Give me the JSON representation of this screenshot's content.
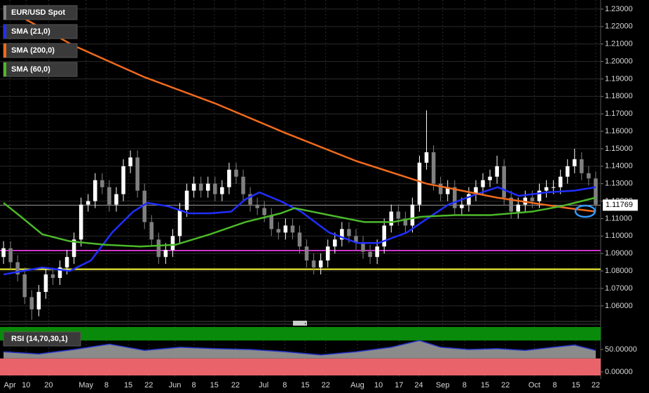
{
  "chart_data": [
    {
      "type": "candlestick",
      "xlim": [
        -0.5,
        84.7
      ],
      "ylim": [
        1.0523,
        1.2352
      ],
      "grid": true,
      "yticks": [
        {
          "value": 1.06,
          "label": "1.06000"
        },
        {
          "value": 1.07,
          "label": "1.07000"
        },
        {
          "value": 1.08,
          "label": "1.08000"
        },
        {
          "value": 1.09,
          "label": "1.09000"
        },
        {
          "value": 1.1,
          "label": "1.10000"
        },
        {
          "value": 1.11,
          "label": "1.11000"
        },
        {
          "value": 1.12,
          "label": "1.12000"
        },
        {
          "value": 1.13,
          "label": "1.13000"
        },
        {
          "value": 1.14,
          "label": "1.14000"
        },
        {
          "value": 1.15,
          "label": "1.15000"
        },
        {
          "value": 1.16,
          "label": "1.16000"
        },
        {
          "value": 1.17,
          "label": "1.17000"
        },
        {
          "value": 1.18,
          "label": "1.18000"
        },
        {
          "value": 1.19,
          "label": "1.19000"
        },
        {
          "value": 1.2,
          "label": "1.20000"
        },
        {
          "value": 1.21,
          "label": "1.21000"
        },
        {
          "value": 1.22,
          "label": "1.22000"
        },
        {
          "value": 1.23,
          "label": "1.23000"
        }
      ],
      "xticks": [
        {
          "value": 0.9,
          "label": "Apr"
        },
        {
          "value": 3.2,
          "label": "10"
        },
        {
          "value": 6.4,
          "label": "20"
        },
        {
          "value": 11.7,
          "label": "May"
        },
        {
          "value": 14.6,
          "label": "8"
        },
        {
          "value": 17.7,
          "label": "15"
        },
        {
          "value": 20.6,
          "label": "22"
        },
        {
          "value": 24.3,
          "label": "Jun"
        },
        {
          "value": 27.0,
          "label": "8"
        },
        {
          "value": 29.9,
          "label": "15"
        },
        {
          "value": 32.9,
          "label": "22"
        },
        {
          "value": 36.9,
          "label": "Jul"
        },
        {
          "value": 39.9,
          "label": "8"
        },
        {
          "value": 42.8,
          "label": "15"
        },
        {
          "value": 45.7,
          "label": "22"
        },
        {
          "value": 50.2,
          "label": "Aug"
        },
        {
          "value": 53.2,
          "label": "10"
        },
        {
          "value": 56.1,
          "label": "17"
        },
        {
          "value": 58.9,
          "label": "24"
        },
        {
          "value": 62.3,
          "label": "Sep"
        },
        {
          "value": 65.4,
          "label": "8"
        },
        {
          "value": 68.3,
          "label": "15"
        },
        {
          "value": 71.2,
          "label": "22"
        },
        {
          "value": 75.3,
          "label": "Oct"
        },
        {
          "value": 78.2,
          "label": "8"
        },
        {
          "value": 81.2,
          "label": "15"
        },
        {
          "value": 84.0,
          "label": "22"
        }
      ],
      "last_price": 1.11769,
      "hlines": [
        {
          "value": 1.0917,
          "color": "#cc33cc"
        },
        {
          "value": 1.081,
          "color": "#ffff33"
        }
      ],
      "series": [
        {
          "name": "EUR/USD Spot",
          "color": "#ffffff",
          "down_color": "#808080",
          "open": [
            1.088,
            1.093,
            1.085,
            1.078,
            1.065,
            1.058,
            1.068,
            1.078,
            1.076,
            1.082,
            1.088,
            1.098,
            1.118,
            1.12,
            1.132,
            1.128,
            1.118,
            1.124,
            1.14,
            1.145,
            1.126,
            1.108,
            1.098,
            1.088,
            1.092,
            1.1,
            1.115,
            1.126,
            1.13,
            1.126,
            1.13,
            1.124,
            1.128,
            1.138,
            1.134,
            1.124,
            1.118,
            1.116,
            1.112,
            1.104,
            1.102,
            1.106,
            1.102,
            1.094,
            1.086,
            1.082,
            1.086,
            1.094,
            1.098,
            1.104,
            1.1,
            1.096,
            1.091,
            1.088,
            1.094,
            1.106,
            1.114,
            1.11,
            1.106,
            1.118,
            1.142,
            1.148,
            1.13,
            1.124,
            1.128,
            1.116,
            1.118,
            1.124,
            1.128,
            1.132,
            1.134,
            1.14,
            1.122,
            1.114,
            1.118,
            1.122,
            1.12,
            1.126,
            1.128,
            1.128,
            1.134,
            1.14,
            1.144,
            1.136,
            1.133
          ],
          "high": [
            1.097,
            1.097,
            1.089,
            1.082,
            1.069,
            1.072,
            1.082,
            1.082,
            1.086,
            1.092,
            1.102,
            1.122,
            1.124,
            1.136,
            1.136,
            1.132,
            1.128,
            1.144,
            1.149,
            1.149,
            1.13,
            1.112,
            1.102,
            1.096,
            1.104,
            1.119,
            1.13,
            1.134,
            1.134,
            1.134,
            1.134,
            1.132,
            1.142,
            1.142,
            1.138,
            1.128,
            1.122,
            1.12,
            1.116,
            1.108,
            1.11,
            1.11,
            1.106,
            1.098,
            1.09,
            1.09,
            1.098,
            1.102,
            1.108,
            1.108,
            1.104,
            1.1,
            1.095,
            1.098,
            1.11,
            1.118,
            1.118,
            1.114,
            1.122,
            1.146,
            1.172,
            1.152,
            1.134,
            1.132,
            1.132,
            1.122,
            1.128,
            1.132,
            1.136,
            1.138,
            1.146,
            1.144,
            1.126,
            1.122,
            1.126,
            1.126,
            1.13,
            1.132,
            1.132,
            1.138,
            1.144,
            1.15,
            1.148,
            1.14,
            1.137
          ],
          "low": [
            1.084,
            1.081,
            1.074,
            1.061,
            1.052,
            1.054,
            1.064,
            1.072,
            1.072,
            1.078,
            1.084,
            1.094,
            1.114,
            1.116,
            1.124,
            1.114,
            1.114,
            1.12,
            1.136,
            1.122,
            1.104,
            1.094,
            1.084,
            1.084,
            1.088,
            1.096,
            1.111,
            1.122,
            1.122,
            1.122,
            1.12,
            1.12,
            1.124,
            1.13,
            1.12,
            1.114,
            1.112,
            1.108,
            1.1,
            1.098,
            1.098,
            1.098,
            1.09,
            1.082,
            1.078,
            1.078,
            1.082,
            1.09,
            1.094,
            1.096,
            1.092,
            1.087,
            1.084,
            1.084,
            1.09,
            1.102,
            1.106,
            1.102,
            1.102,
            1.114,
            1.138,
            1.126,
            1.12,
            1.12,
            1.112,
            1.112,
            1.114,
            1.12,
            1.124,
            1.128,
            1.13,
            1.118,
            1.11,
            1.11,
            1.114,
            1.116,
            1.116,
            1.122,
            1.124,
            1.124,
            1.13,
            1.136,
            1.132,
            1.129,
            1.114
          ],
          "close": [
            1.093,
            1.085,
            1.078,
            1.065,
            1.058,
            1.068,
            1.078,
            1.076,
            1.082,
            1.088,
            1.098,
            1.118,
            1.12,
            1.132,
            1.128,
            1.118,
            1.124,
            1.14,
            1.145,
            1.126,
            1.108,
            1.098,
            1.088,
            1.092,
            1.1,
            1.115,
            1.126,
            1.13,
            1.126,
            1.13,
            1.124,
            1.128,
            1.138,
            1.134,
            1.124,
            1.118,
            1.116,
            1.112,
            1.104,
            1.102,
            1.106,
            1.102,
            1.094,
            1.086,
            1.082,
            1.086,
            1.094,
            1.098,
            1.104,
            1.1,
            1.096,
            1.091,
            1.088,
            1.094,
            1.106,
            1.114,
            1.11,
            1.106,
            1.118,
            1.142,
            1.148,
            1.13,
            1.124,
            1.128,
            1.116,
            1.118,
            1.124,
            1.128,
            1.132,
            1.134,
            1.14,
            1.122,
            1.114,
            1.118,
            1.122,
            1.12,
            1.126,
            1.128,
            1.128,
            1.134,
            1.14,
            1.144,
            1.136,
            1.133,
            1.118
          ]
        },
        {
          "name": "SMA (21,0)",
          "color": "#1f2fff",
          "x": [
            0,
            5.5,
            9.4,
            12.4,
            15.4,
            18.4,
            20.4,
            23.4,
            26.3,
            29.3,
            32.3,
            34.3,
            36.3,
            39.3,
            42.2,
            46.2,
            50.2,
            53.2,
            57.2,
            60.1,
            63.1,
            67.1,
            70.1,
            73.1,
            77.0,
            81.0,
            84.0
          ],
          "values": [
            1.078,
            1.082,
            1.08,
            1.086,
            1.102,
            1.114,
            1.119,
            1.117,
            1.113,
            1.113,
            1.114,
            1.121,
            1.125,
            1.12,
            1.114,
            1.102,
            1.096,
            1.096,
            1.102,
            1.11,
            1.118,
            1.124,
            1.128,
            1.123,
            1.125,
            1.126,
            1.128
          ]
        },
        {
          "name": "SMA (200,0)",
          "color": "#f06a1c",
          "x": [
            0,
            10,
            20,
            30,
            40,
            50,
            60,
            70,
            80,
            84
          ],
          "values": [
            1.231,
            1.209,
            1.191,
            1.176,
            1.159,
            1.143,
            1.13,
            1.122,
            1.116,
            1.114
          ]
        },
        {
          "name": "SMA (60,0)",
          "color": "#4cb82a",
          "x": [
            0,
            2.5,
            5.5,
            9.4,
            14.4,
            19.4,
            24.4,
            29.3,
            34.3,
            39.3,
            41.3,
            46.2,
            51.2,
            55.2,
            59.1,
            64.1,
            69.1,
            75.0,
            79.0,
            84.0
          ],
          "values": [
            1.119,
            1.111,
            1.101,
            1.097,
            1.095,
            1.094,
            1.095,
            1.101,
            1.108,
            1.113,
            1.116,
            1.112,
            1.108,
            1.108,
            1.111,
            1.112,
            1.112,
            1.114,
            1.117,
            1.122
          ]
        }
      ]
    },
    {
      "type": "area",
      "name": "RSI (14,70,30,1)",
      "color": "#2233cc",
      "fill": "#9a9a9a",
      "xlim": [
        -0.5,
        84.7
      ],
      "ylim": [
        -7.8,
        100
      ],
      "levels": [
        70,
        30
      ],
      "yticks": [
        {
          "value": 50,
          "label": "50.00000"
        },
        {
          "value": 0,
          "label": "0.00000"
        }
      ],
      "x": [
        0,
        5,
        10,
        15,
        20,
        25,
        30,
        35,
        40,
        45,
        50,
        55,
        59,
        62,
        66,
        70,
        74,
        78,
        81,
        84
      ],
      "values": [
        45,
        40,
        50,
        62,
        48,
        55,
        52,
        50,
        45,
        38,
        45,
        55,
        70,
        55,
        50,
        52,
        48,
        55,
        60,
        48
      ]
    }
  ]
}
